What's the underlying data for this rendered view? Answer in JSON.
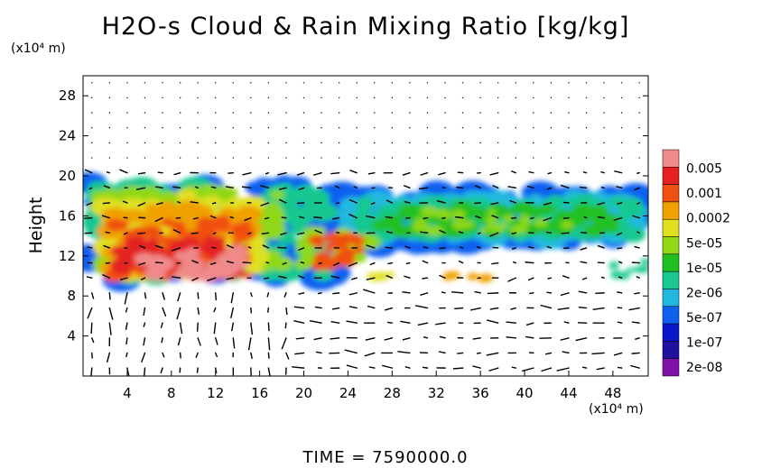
{
  "chart_data": {
    "type": "heatmap",
    "title": "H2O-s Cloud & Rain Mixing Ratio [kg/kg]",
    "ylabel": "Height",
    "y_unit_label": "(x10⁴ m)",
    "x_unit_label": "(x10⁴ m)",
    "xlim": [
      0,
      51.2
    ],
    "ylim": [
      0,
      30
    ],
    "x_ticks": [
      "4",
      "8",
      "12",
      "16",
      "20",
      "24",
      "28",
      "32",
      "36",
      "40",
      "44",
      "48"
    ],
    "y_ticks": [
      "4",
      "8",
      "12",
      "16",
      "20",
      "24",
      "28"
    ],
    "colorbar": {
      "labels": [
        "0.005",
        "0.001",
        "0.0002",
        "5e-05",
        "1e-05",
        "2e-06",
        "5e-07",
        "1e-07",
        "2e-08"
      ],
      "colors": [
        "#f08a8a",
        "#e42020",
        "#f05010",
        "#f0a000",
        "#e0e020",
        "#90d818",
        "#20c020",
        "#18c890",
        "#20b8e0",
        "#1060f0",
        "#0818c8",
        "#2010a0",
        "#8010a8"
      ]
    },
    "time_label": "TIME = 7590000.0",
    "cloud_regions": [
      {
        "x": [
          1,
          23
        ],
        "y": [
          9,
          20
        ],
        "level": "high"
      },
      {
        "x": [
          4,
          15
        ],
        "y": [
          10,
          14
        ],
        "level": "max"
      },
      {
        "x": [
          22,
          51
        ],
        "y": [
          12,
          19
        ],
        "level": "low"
      },
      {
        "x": [
          33,
          37
        ],
        "y": [
          9.5,
          10.5
        ],
        "level": "low"
      }
    ]
  }
}
